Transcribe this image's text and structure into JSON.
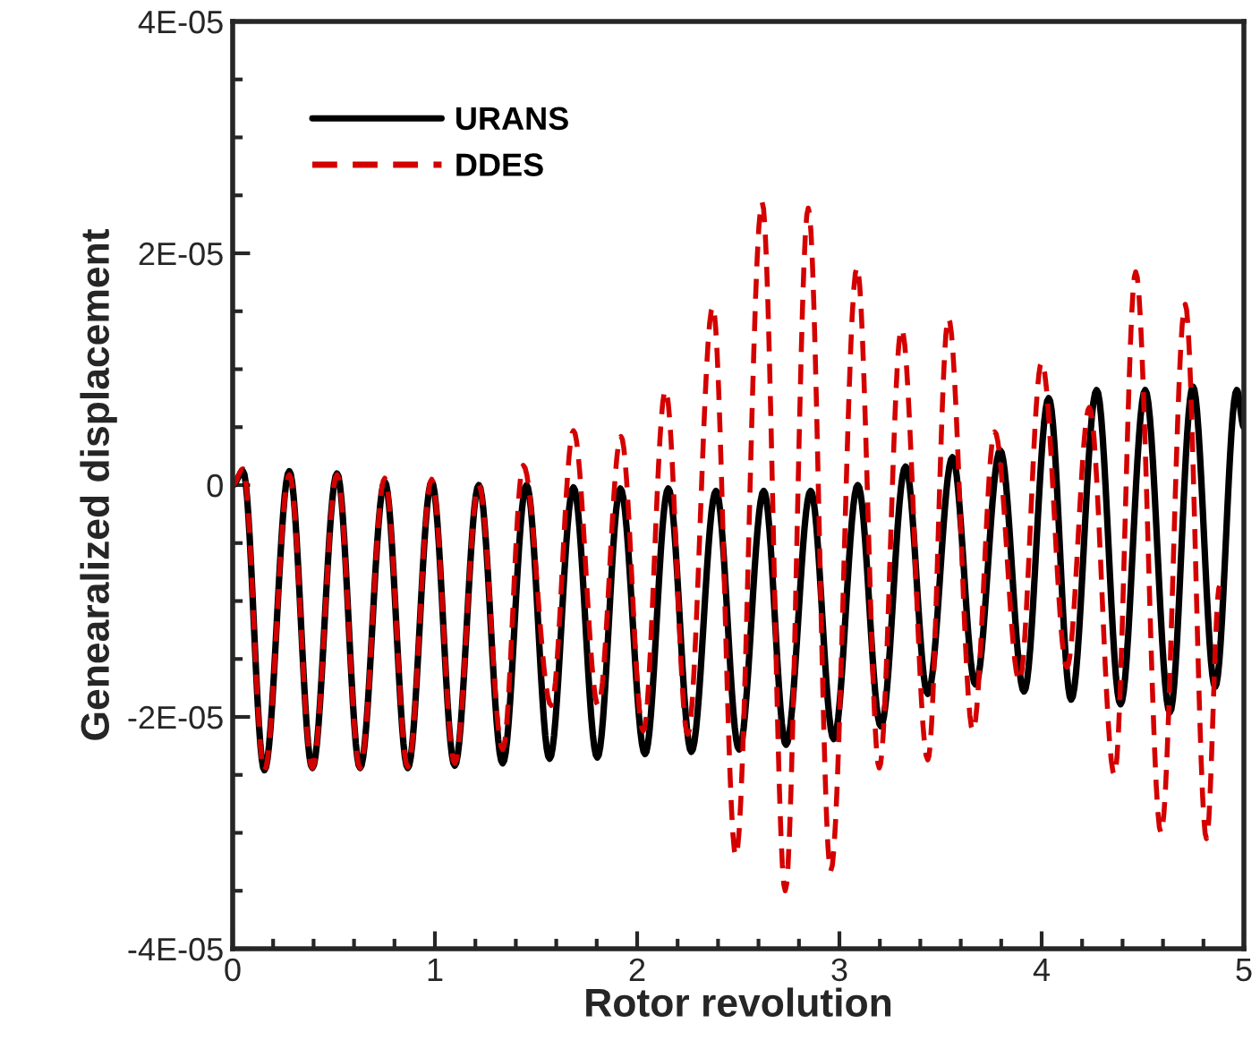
{
  "chart_data": {
    "type": "line",
    "xlabel": "Rotor revolution",
    "ylabel": "Genearalized displacement",
    "xlim": [
      0,
      5
    ],
    "xticks": [
      0,
      1,
      2,
      3,
      4,
      5
    ],
    "ylim": [
      -4e-05,
      4e-05
    ],
    "yticks": [
      {
        "value": -4e-05,
        "label": "-4E-05"
      },
      {
        "value": -2e-05,
        "label": "-2E-05"
      },
      {
        "value": 0,
        "label": "0"
      },
      {
        "value": 2e-05,
        "label": "2E-05"
      },
      {
        "value": 4e-05,
        "label": "4E-05"
      }
    ],
    "grid": false,
    "legend": "top left",
    "series": [
      {
        "name": "URANS",
        "color": "#000000",
        "line_style": "solid",
        "x": [
          0,
          0.051,
          0.157,
          0.28,
          0.394,
          0.516,
          0.63,
          0.752,
          0.866,
          0.984,
          1.098,
          1.217,
          1.335,
          1.453,
          1.567,
          1.685,
          1.803,
          1.917,
          2.039,
          2.154,
          2.268,
          2.39,
          2.504,
          2.626,
          2.736,
          2.858,
          2.972,
          3.091,
          3.205,
          3.327,
          3.437,
          3.559,
          3.673,
          3.795,
          3.913,
          4.035,
          4.146,
          4.272,
          4.39,
          4.512,
          4.634,
          4.748,
          4.858,
          4.965,
          5
        ],
        "values": [
          0,
          1.2e-06,
          -2.46e-05,
          1.2e-06,
          -2.44e-05,
          1e-06,
          -2.44e-05,
          3e-07,
          -2.44e-05,
          3e-07,
          -2.42e-05,
          0,
          -2.4e-05,
          0,
          -2.36e-05,
          -2e-07,
          -2.35e-05,
          -3e-07,
          -2.32e-05,
          -3e-07,
          -2.3e-05,
          -5e-07,
          -2.28e-05,
          -5e-07,
          -2.24e-05,
          -5e-07,
          -2.19e-05,
          0,
          -2.08e-05,
          1.6e-06,
          -1.8e-05,
          2.4e-06,
          -1.72e-05,
          3e-06,
          -1.78e-05,
          7.5e-06,
          -1.85e-05,
          8.2e-06,
          -1.89e-05,
          8.2e-06,
          -1.96e-05,
          8.5e-06,
          -1.74e-05,
          8.2e-06,
          5e-06
        ]
      },
      {
        "name": "DDES",
        "color": "#d40000",
        "line_style": "dashed",
        "x": [
          0,
          0.051,
          0.157,
          0.28,
          0.394,
          0.516,
          0.63,
          0.752,
          0.866,
          0.984,
          1.098,
          1.217,
          1.335,
          1.437,
          1.575,
          1.685,
          1.807,
          1.92,
          2.03,
          2.14,
          2.25,
          2.374,
          2.488,
          2.618,
          2.732,
          2.846,
          2.957,
          3.087,
          3.197,
          3.307,
          3.437,
          3.539,
          3.66,
          3.768,
          3.89,
          4.0,
          4.125,
          4.236,
          4.36,
          4.465,
          4.59,
          4.71,
          4.815,
          4.88
        ],
        "values": [
          0,
          1.4e-06,
          -2.46e-05,
          9e-07,
          -2.44e-05,
          9e-07,
          -2.44e-05,
          6e-07,
          -2.43e-05,
          5e-07,
          -2.4e-05,
          0,
          -2.28e-05,
          1.7e-06,
          -1.9e-05,
          4.7e-06,
          -1.9e-05,
          4.2e-06,
          -2.12e-05,
          8.2e-06,
          -2.15e-05,
          1.54e-05,
          -3.2e-05,
          2.44e-05,
          -3.5e-05,
          2.39e-05,
          -3.33e-05,
          1.88e-05,
          -2.44e-05,
          1.35e-05,
          -2.37e-05,
          1.44e-05,
          -2.12e-05,
          4.6e-06,
          -1.69e-05,
          1.06e-05,
          -1.57e-05,
          6.7e-06,
          -2.5e-05,
          1.84e-05,
          -3e-05,
          1.56e-05,
          -3.05e-05,
          -8.7e-06
        ]
      }
    ]
  }
}
